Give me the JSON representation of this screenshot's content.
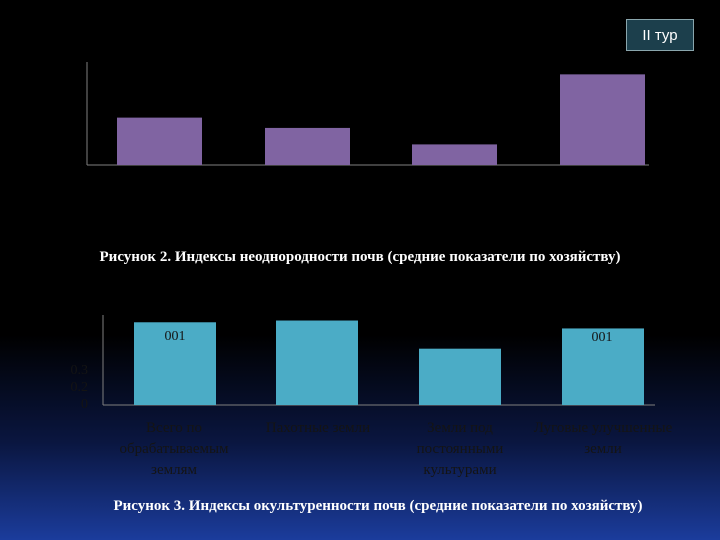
{
  "badge": {
    "label": "II тур"
  },
  "chart_data": [
    {
      "type": "bar",
      "title": "",
      "caption": "Рисунок 2. Индексы неоднородности почв (средние показатели по хозяйству)",
      "categories": [
        "",
        "",
        "",
        ""
      ],
      "values": [
        0.46,
        0.36,
        0.2,
        0.88
      ],
      "ylim": [
        0,
        1
      ],
      "grid": false,
      "colors": {
        "bar": "#8064a2",
        "axis": "#7f7f7f"
      }
    },
    {
      "type": "bar",
      "title": "",
      "caption": "Рисунок 3. Индексы окультуренности почв (средние показатели по хозяйству)",
      "categories": [
        "Всего по обрабатываемым землям",
        "Пахотные земли",
        "Земли под постоянными культурами",
        "Луговые улучшенные земли"
      ],
      "values": [
        0.94,
        0.96,
        0.64,
        0.87
      ],
      "data_labels": [
        "001",
        "",
        "",
        "001"
      ],
      "y_ticks": [
        "0",
        "0.2",
        "0.3"
      ],
      "ylim": [
        0,
        1
      ],
      "grid": false,
      "colors": {
        "bar": "#4bacc6",
        "axis": "#7f7f7f"
      }
    }
  ]
}
